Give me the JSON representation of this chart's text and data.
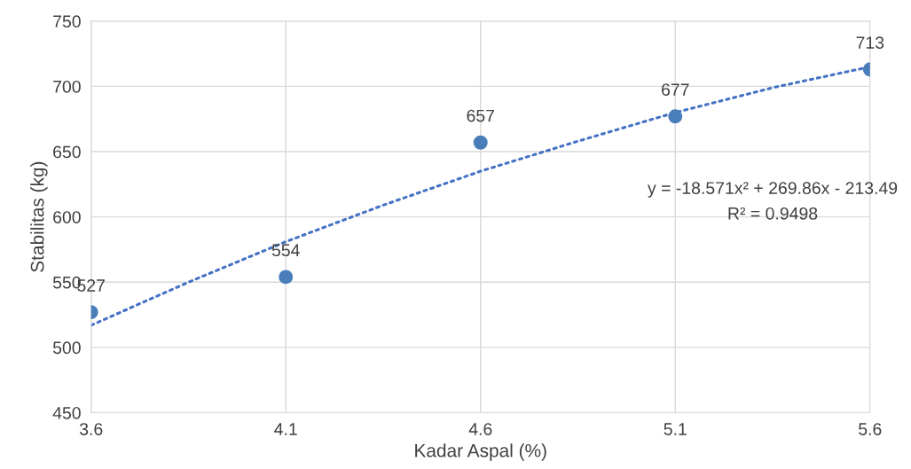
{
  "chart_data": {
    "type": "scatter",
    "xlabel": "Kadar Aspal (%)",
    "ylabel": "Stabilitas (kg)",
    "xlim": [
      3.6,
      5.6
    ],
    "xticks": [
      3.6,
      4.1,
      4.6,
      5.1,
      5.6
    ],
    "ylim": [
      450,
      750
    ],
    "yticks": [
      450,
      500,
      550,
      600,
      650,
      700,
      750
    ],
    "grid": true,
    "series": [
      {
        "type": "line",
        "color": "#4472c4",
        "line_style": "dotted",
        "marker": "none",
        "x": [
          3.6,
          3.85,
          4.1,
          4.35,
          4.6,
          4.85,
          5.1,
          5.35,
          5.6
        ],
        "values": [
          517,
          550,
          581,
          609,
          635,
          658,
          680,
          699,
          715
        ]
      },
      {
        "color": "#4a7ebb",
        "marker": "circle",
        "x": [
          3.6,
          4.1,
          4.6,
          5.1,
          5.6
        ],
        "values": [
          527,
          554,
          657,
          677,
          713
        ],
        "value_labels": [
          "527",
          "554",
          "657",
          "677",
          "713"
        ]
      }
    ],
    "annotations": [
      "y = -18.571x² + 269.86x - 213.49",
      "R² = 0.9498"
    ]
  }
}
